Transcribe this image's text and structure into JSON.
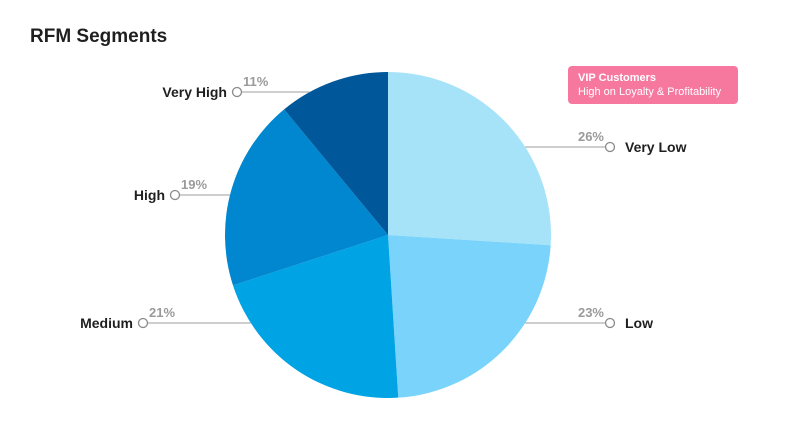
{
  "chart_data": {
    "type": "pie",
    "title": "RFM Segments",
    "slices": [
      {
        "label": "Very Low",
        "value": 26,
        "value_label": "26%",
        "color": "#a6e3f9"
      },
      {
        "label": "Low",
        "value": 23,
        "value_label": "23%",
        "color": "#79d3fb"
      },
      {
        "label": "Medium",
        "value": 21,
        "value_label": "21%",
        "color": "#00a3e3"
      },
      {
        "label": "High",
        "value": 19,
        "value_label": "19%",
        "color": "#0087cf"
      },
      {
        "label": "Very High",
        "value": 11,
        "value_label": "11%",
        "color": "#00579a"
      }
    ],
    "start": "12 o'clock",
    "direction": "clockwise",
    "annotation": {
      "title": "VIP Customers",
      "subtitle": "High on Loyalty & Profitability",
      "color": "#f7789f"
    }
  }
}
